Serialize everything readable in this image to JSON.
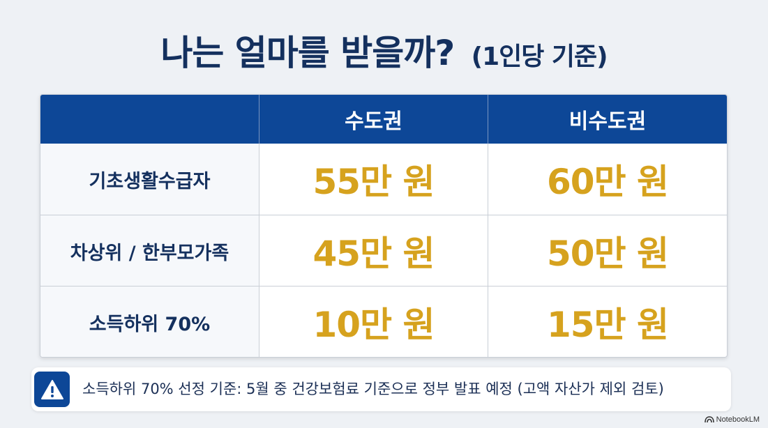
{
  "title": {
    "main": "나는 얼마를 받을까?",
    "sub": "(1인당 기준)"
  },
  "table": {
    "headers": [
      "",
      "수도권",
      "비수도권"
    ],
    "rows": [
      {
        "label": "기초생활수급자",
        "capital": "55만 원",
        "non_capital": "60만 원"
      },
      {
        "label": "차상위 / 한부모가족",
        "capital": "45만 원",
        "non_capital": "50만 원"
      },
      {
        "label": "소득하위 70%",
        "capital": "10만 원",
        "non_capital": "15만 원"
      }
    ]
  },
  "notice": {
    "icon": "warning-icon",
    "text": "소득하위 70% 선정 기준: 5월 중 건강보험료 기준으로 정부 발표 예정 (고액 자산가 제외 검토)"
  },
  "brand": {
    "label": "NotebookLM",
    "icon": "notebooklm-logo-icon"
  },
  "colors": {
    "header": "#0d4797",
    "title": "#14305e",
    "amount": "#d6a21e",
    "background": "#eef1f5"
  }
}
